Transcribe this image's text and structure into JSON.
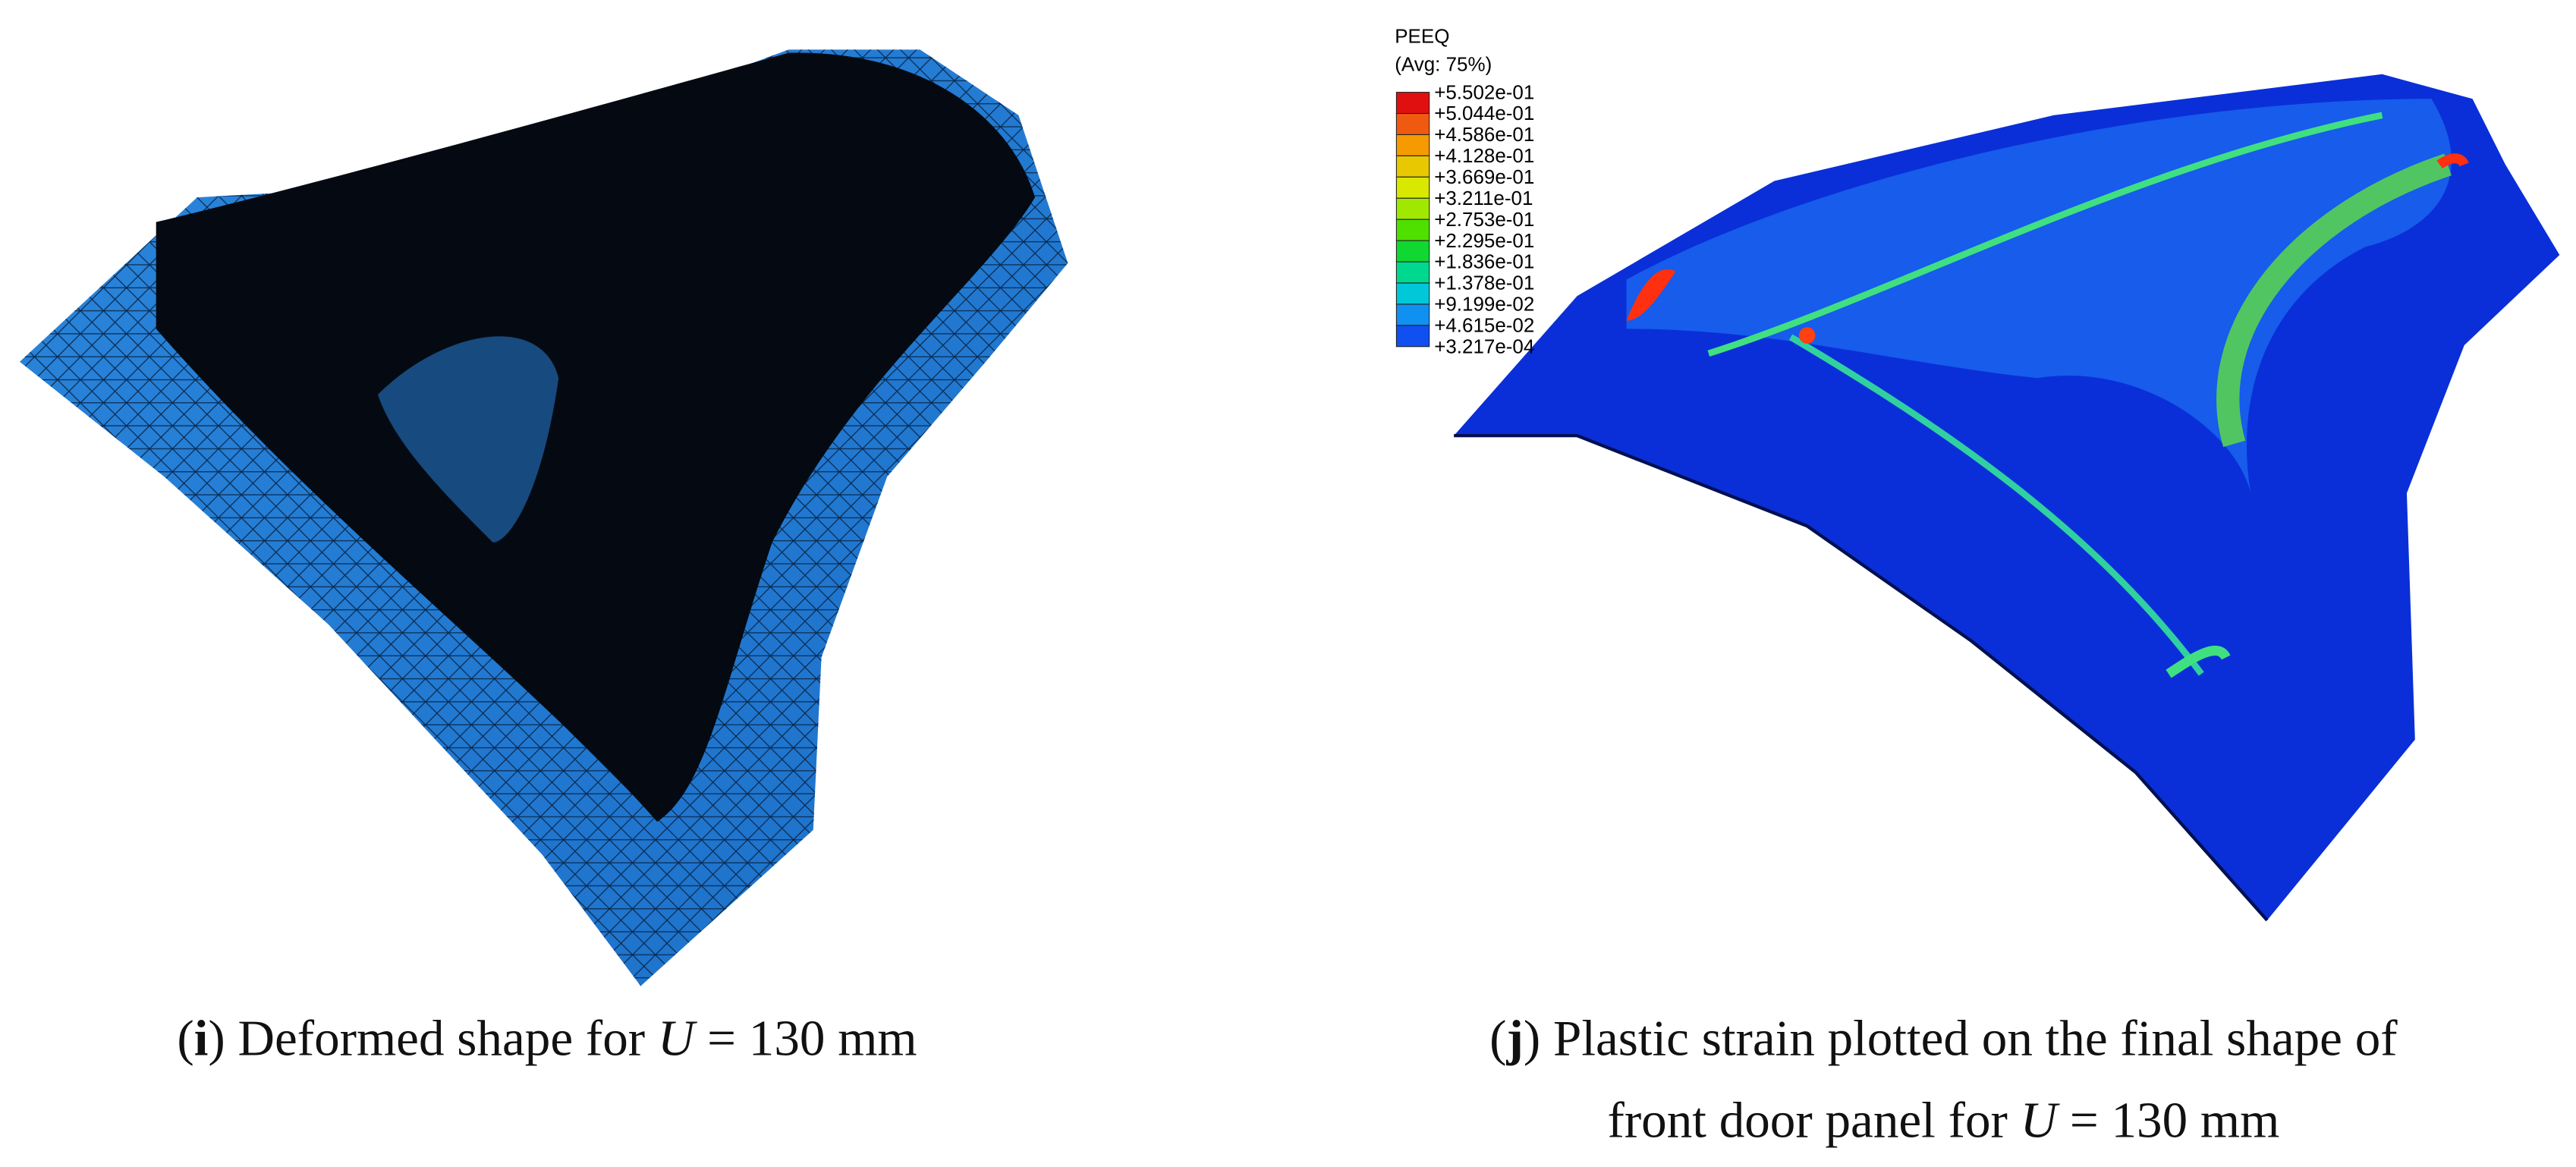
{
  "panels": [
    {
      "caption": {
        "lines": [
          [
            {
              "text": "(",
              "style": "normal"
            },
            {
              "text": "i",
              "style": "bold"
            },
            {
              "text": ") Deformed shape for ",
              "style": "normal"
            },
            {
              "text": "U",
              "style": "italic"
            },
            {
              "text": " = 130 mm",
              "style": "normal"
            }
          ]
        ]
      }
    },
    {
      "legend": {
        "title": "PEEQ",
        "subtitle": "(Avg: 75%)",
        "labels": [
          "+5.502e-01",
          "+5.044e-01",
          "+4.586e-01",
          "+4.128e-01",
          "+3.669e-01",
          "+3.211e-01",
          "+2.753e-01",
          "+2.295e-01",
          "+1.836e-01",
          "+1.378e-01",
          "+9.199e-02",
          "+4.615e-02",
          "+3.217e-04"
        ],
        "colors": [
          "#e01010",
          "#f05a10",
          "#f59a00",
          "#e8c800",
          "#d8e800",
          "#a0e800",
          "#50e000",
          "#10d830",
          "#00d890",
          "#00c8d8",
          "#1090f0",
          "#1050f0",
          "#0010e0"
        ]
      },
      "caption": {
        "lines": [
          [
            {
              "text": "(",
              "style": "normal"
            },
            {
              "text": "j",
              "style": "bold"
            },
            {
              "text": ") Plastic strain plotted on the final shape of",
              "style": "normal"
            }
          ],
          [
            {
              "text": "front door panel for ",
              "style": "normal"
            },
            {
              "text": "U",
              "style": "italic"
            },
            {
              "text": " = 130 mm",
              "style": "normal"
            }
          ]
        ]
      }
    }
  ]
}
